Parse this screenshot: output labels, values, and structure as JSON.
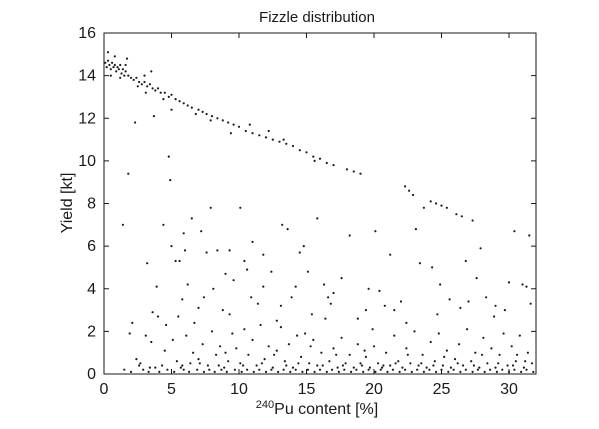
{
  "chart_data": {
    "type": "scatter",
    "title": "Fizzle distribution",
    "xlabel": "Pu content [%]",
    "xlabel_superscript": "240",
    "ylabel": "Yield [kt]",
    "xlim": [
      0,
      32
    ],
    "ylim": [
      0,
      16
    ],
    "xticks": [
      0,
      5,
      10,
      15,
      20,
      25,
      30
    ],
    "yticks": [
      0,
      2,
      4,
      6,
      8,
      10,
      12,
      14,
      16
    ],
    "grid": false,
    "marker_color": "#1a1a1a",
    "points": [
      [
        0.1,
        14.6
      ],
      [
        0.2,
        14.4
      ],
      [
        0.3,
        14.7
      ],
      [
        0.4,
        14.5
      ],
      [
        0.5,
        14.3
      ],
      [
        0.6,
        14.6
      ],
      [
        0.7,
        14.4
      ],
      [
        0.8,
        14.5
      ],
      [
        0.9,
        14.2
      ],
      [
        1.0,
        14.4
      ],
      [
        1.1,
        14.3
      ],
      [
        1.2,
        14.5
      ],
      [
        1.3,
        14.1
      ],
      [
        1.4,
        14.3
      ],
      [
        1.5,
        14.0
      ],
      [
        1.6,
        14.2
      ],
      [
        1.8,
        14.0
      ],
      [
        2.0,
        13.9
      ],
      [
        2.2,
        13.8
      ],
      [
        2.4,
        13.9
      ],
      [
        2.6,
        13.7
      ],
      [
        2.8,
        13.6
      ],
      [
        3.0,
        13.7
      ],
      [
        3.2,
        13.5
      ],
      [
        3.4,
        13.6
      ],
      [
        3.6,
        13.4
      ],
      [
        3.8,
        13.3
      ],
      [
        4.0,
        13.4
      ],
      [
        4.2,
        13.2
      ],
      [
        4.5,
        13.2
      ],
      [
        4.8,
        13.0
      ],
      [
        5.0,
        13.1
      ],
      [
        5.3,
        12.9
      ],
      [
        5.6,
        12.8
      ],
      [
        5.9,
        12.7
      ],
      [
        6.2,
        12.6
      ],
      [
        6.5,
        12.5
      ],
      [
        7.0,
        12.4
      ],
      [
        7.3,
        12.3
      ],
      [
        7.6,
        12.2
      ],
      [
        8.0,
        12.1
      ],
      [
        8.4,
        12.0
      ],
      [
        8.8,
        11.9
      ],
      [
        9.2,
        11.8
      ],
      [
        9.6,
        11.7
      ],
      [
        10.0,
        11.6
      ],
      [
        10.5,
        11.4
      ],
      [
        11.0,
        11.3
      ],
      [
        11.5,
        11.2
      ],
      [
        12.0,
        11.1
      ],
      [
        12.5,
        11.0
      ],
      [
        13.0,
        10.9
      ],
      [
        13.5,
        10.8
      ],
      [
        14.0,
        10.7
      ],
      [
        14.5,
        10.5
      ],
      [
        15.0,
        10.4
      ],
      [
        15.5,
        10.2
      ],
      [
        16.0,
        10.1
      ],
      [
        17.0,
        9.8
      ],
      [
        18.0,
        9.6
      ],
      [
        19.0,
        9.4
      ],
      [
        22.3,
        8.8
      ],
      [
        22.6,
        8.6
      ],
      [
        22.9,
        8.4
      ],
      [
        24.2,
        8.1
      ],
      [
        24.6,
        8.0
      ],
      [
        25.0,
        7.9
      ],
      [
        25.4,
        7.8
      ],
      [
        26.5,
        7.4
      ],
      [
        27.3,
        7.2
      ],
      [
        0.8,
        14.9
      ],
      [
        1.7,
        14.8
      ],
      [
        3.5,
        14.2
      ],
      [
        0.3,
        15.1
      ],
      [
        1.2,
        13.9
      ],
      [
        2.5,
        13.5
      ],
      [
        4.4,
        12.9
      ],
      [
        6.8,
        12.2
      ],
      [
        9.4,
        11.3
      ],
      [
        10.8,
        11.7
      ],
      [
        13.3,
        11.0
      ],
      [
        15.6,
        10.0
      ],
      [
        5.0,
        12.4
      ],
      [
        7.9,
        11.9
      ],
      [
        12.2,
        11.4
      ],
      [
        16.5,
        9.9
      ],
      [
        18.5,
        9.5
      ],
      [
        3.0,
        14.0
      ],
      [
        1.6,
        14.5
      ],
      [
        0.5,
        14.0
      ],
      [
        1.4,
        7.0
      ],
      [
        1.8,
        9.4
      ],
      [
        2.3,
        11.8
      ],
      [
        3.1,
        13.2
      ],
      [
        3.7,
        12.1
      ],
      [
        4.8,
        10.2
      ],
      [
        4.9,
        9.1
      ],
      [
        5.3,
        5.3
      ],
      [
        5.6,
        5.3
      ],
      [
        5.9,
        6.6
      ],
      [
        6.5,
        7.3
      ],
      [
        7.2,
        6.7
      ],
      [
        7.6,
        5.7
      ],
      [
        7.9,
        7.8
      ],
      [
        8.4,
        5.8
      ],
      [
        9.0,
        4.7
      ],
      [
        9.6,
        4.4
      ],
      [
        10.1,
        7.8
      ],
      [
        10.6,
        4.9
      ],
      [
        11.0,
        6.2
      ],
      [
        11.8,
        4.1
      ],
      [
        12.4,
        4.8
      ],
      [
        13.2,
        7.0
      ],
      [
        13.6,
        6.8
      ],
      [
        14.2,
        4.1
      ],
      [
        14.5,
        5.7
      ],
      [
        15.1,
        4.8
      ],
      [
        15.8,
        7.3
      ],
      [
        16.3,
        4.2
      ],
      [
        17.0,
        3.8
      ],
      [
        17.6,
        4.5
      ],
      [
        18.2,
        6.5
      ],
      [
        19.4,
        3.0
      ],
      [
        20.1,
        6.7
      ],
      [
        20.8,
        3.2
      ],
      [
        21.5,
        3.0
      ],
      [
        22.4,
        2.4
      ],
      [
        23.1,
        6.8
      ],
      [
        23.7,
        7.8
      ],
      [
        24.3,
        5.0
      ],
      [
        24.9,
        4.2
      ],
      [
        25.6,
        3.5
      ],
      [
        26.1,
        7.5
      ],
      [
        26.8,
        5.3
      ],
      [
        27.6,
        4.5
      ],
      [
        28.3,
        3.6
      ],
      [
        29.0,
        3.2
      ],
      [
        29.7,
        3.0
      ],
      [
        30.4,
        6.7
      ],
      [
        31.0,
        4.2
      ],
      [
        31.5,
        6.5
      ],
      [
        3.2,
        5.2
      ],
      [
        3.9,
        4.1
      ],
      [
        4.4,
        7.0
      ],
      [
        5.8,
        3.5
      ],
      [
        6.2,
        4.2
      ],
      [
        7.0,
        3.1
      ],
      [
        8.1,
        4.0
      ],
      [
        8.8,
        3.0
      ],
      [
        9.3,
        2.8
      ],
      [
        10.4,
        5.3
      ],
      [
        11.4,
        3.3
      ],
      [
        12.8,
        2.5
      ],
      [
        13.9,
        3.6
      ],
      [
        15.4,
        2.8
      ],
      [
        16.8,
        3.3
      ],
      [
        18.8,
        2.6
      ],
      [
        20.4,
        3.9
      ],
      [
        22.0,
        3.4
      ],
      [
        26.4,
        3.1
      ],
      [
        28.9,
        2.7
      ],
      [
        30.0,
        4.3
      ],
      [
        31.3,
        4.1
      ],
      [
        1.9,
        1.9
      ],
      [
        2.4,
        0.7
      ],
      [
        2.7,
        0.5
      ],
      [
        3.1,
        1.8
      ],
      [
        3.5,
        1.5
      ],
      [
        4.0,
        2.7
      ],
      [
        4.3,
        0.4
      ],
      [
        4.6,
        2.3
      ],
      [
        5.1,
        1.6
      ],
      [
        5.4,
        0.6
      ],
      [
        5.7,
        0.3
      ],
      [
        6.1,
        1.8
      ],
      [
        6.4,
        0.5
      ],
      [
        6.7,
        2.4
      ],
      [
        7.0,
        0.7
      ],
      [
        7.3,
        1.4
      ],
      [
        7.7,
        0.4
      ],
      [
        8.0,
        2.0
      ],
      [
        8.3,
        0.9
      ],
      [
        8.6,
        1.3
      ],
      [
        8.9,
        0.3
      ],
      [
        9.2,
        0.6
      ],
      [
        9.5,
        1.9
      ],
      [
        9.8,
        1.2
      ],
      [
        10.1,
        0.5
      ],
      [
        10.4,
        2.1
      ],
      [
        10.7,
        0.9
      ],
      [
        11.0,
        1.6
      ],
      [
        11.3,
        0.4
      ],
      [
        11.6,
        2.3
      ],
      [
        11.9,
        0.7
      ],
      [
        12.2,
        1.3
      ],
      [
        12.5,
        0.3
      ],
      [
        12.8,
        1.1
      ],
      [
        13.1,
        2.2
      ],
      [
        13.4,
        0.6
      ],
      [
        13.7,
        1.4
      ],
      [
        14.0,
        0.3
      ],
      [
        14.3,
        1.8
      ],
      [
        14.6,
        0.8
      ],
      [
        14.9,
        1.9
      ],
      [
        15.2,
        0.5
      ],
      [
        15.5,
        1.6
      ],
      [
        15.8,
        0.4
      ],
      [
        16.1,
        1.0
      ],
      [
        16.4,
        2.6
      ],
      [
        16.7,
        0.6
      ],
      [
        17.0,
        1.2
      ],
      [
        17.3,
        0.3
      ],
      [
        17.6,
        1.7
      ],
      [
        17.9,
        0.5
      ],
      [
        18.2,
        0.9
      ],
      [
        18.5,
        0.3
      ],
      [
        18.8,
        1.4
      ],
      [
        19.1,
        0.4
      ],
      [
        19.4,
        0.8
      ],
      [
        19.7,
        0.3
      ],
      [
        20.0,
        1.3
      ],
      [
        20.3,
        0.5
      ],
      [
        20.6,
        0.3
      ],
      [
        20.9,
        1.0
      ],
      [
        21.2,
        0.4
      ],
      [
        21.5,
        1.8
      ],
      [
        21.8,
        0.6
      ],
      [
        22.1,
        0.3
      ],
      [
        22.4,
        1.2
      ],
      [
        22.7,
        0.5
      ],
      [
        23.0,
        2.0
      ],
      [
        23.3,
        0.4
      ],
      [
        23.6,
        0.9
      ],
      [
        23.9,
        0.3
      ],
      [
        24.2,
        1.5
      ],
      [
        24.5,
        0.6
      ],
      [
        24.8,
        1.9
      ],
      [
        25.1,
        0.4
      ],
      [
        25.4,
        1.1
      ],
      [
        25.7,
        0.3
      ],
      [
        26.0,
        0.7
      ],
      [
        26.3,
        1.4
      ],
      [
        26.6,
        0.4
      ],
      [
        26.9,
        2.1
      ],
      [
        27.2,
        0.6
      ],
      [
        27.5,
        1.0
      ],
      [
        27.8,
        0.3
      ],
      [
        28.1,
        1.7
      ],
      [
        28.4,
        0.5
      ],
      [
        28.7,
        1.2
      ],
      [
        29.0,
        0.3
      ],
      [
        29.3,
        0.9
      ],
      [
        29.6,
        1.9
      ],
      [
        29.9,
        0.4
      ],
      [
        30.2,
        1.3
      ],
      [
        30.5,
        0.6
      ],
      [
        30.8,
        1.8
      ],
      [
        31.1,
        0.3
      ],
      [
        31.4,
        1.0
      ],
      [
        31.7,
        0.5
      ],
      [
        1.5,
        0.2
      ],
      [
        2.0,
        0.1
      ],
      [
        2.9,
        0.2
      ],
      [
        3.3,
        0.1
      ],
      [
        3.8,
        0.3
      ],
      [
        4.1,
        0.1
      ],
      [
        4.7,
        0.2
      ],
      [
        5.2,
        0.1
      ],
      [
        5.9,
        0.2
      ],
      [
        6.3,
        0.1
      ],
      [
        6.9,
        0.2
      ],
      [
        7.4,
        0.1
      ],
      [
        7.8,
        0.2
      ],
      [
        8.2,
        0.1
      ],
      [
        8.7,
        0.2
      ],
      [
        9.1,
        0.1
      ],
      [
        9.7,
        0.2
      ],
      [
        10.2,
        0.1
      ],
      [
        10.6,
        0.2
      ],
      [
        11.1,
        0.1
      ],
      [
        11.5,
        0.2
      ],
      [
        12.0,
        0.1
      ],
      [
        12.4,
        0.2
      ],
      [
        12.9,
        0.1
      ],
      [
        13.3,
        0.2
      ],
      [
        13.8,
        0.1
      ],
      [
        14.2,
        0.2
      ],
      [
        14.7,
        0.1
      ],
      [
        15.1,
        0.2
      ],
      [
        15.6,
        0.1
      ],
      [
        16.0,
        0.2
      ],
      [
        16.5,
        0.1
      ],
      [
        16.9,
        0.2
      ],
      [
        17.4,
        0.1
      ],
      [
        17.8,
        0.2
      ],
      [
        18.3,
        0.1
      ],
      [
        18.7,
        0.2
      ],
      [
        19.2,
        0.1
      ],
      [
        19.6,
        0.2
      ],
      [
        20.1,
        0.1
      ],
      [
        20.5,
        0.2
      ],
      [
        21.0,
        0.1
      ],
      [
        21.4,
        0.2
      ],
      [
        21.9,
        0.1
      ],
      [
        22.3,
        0.2
      ],
      [
        22.8,
        0.1
      ],
      [
        23.2,
        0.2
      ],
      [
        23.7,
        0.1
      ],
      [
        24.1,
        0.2
      ],
      [
        24.6,
        0.1
      ],
      [
        25.0,
        0.2
      ],
      [
        25.5,
        0.1
      ],
      [
        25.9,
        0.2
      ],
      [
        26.4,
        0.1
      ],
      [
        26.8,
        0.2
      ],
      [
        27.3,
        0.1
      ],
      [
        27.7,
        0.2
      ],
      [
        28.2,
        0.1
      ],
      [
        28.6,
        0.2
      ],
      [
        29.1,
        0.1
      ],
      [
        29.5,
        0.2
      ],
      [
        30.0,
        0.1
      ],
      [
        30.4,
        0.2
      ],
      [
        30.9,
        0.1
      ],
      [
        31.3,
        0.2
      ],
      [
        31.8,
        0.1
      ],
      [
        5.0,
        6.0
      ],
      [
        6.0,
        5.8
      ],
      [
        9.3,
        5.8
      ],
      [
        11.8,
        5.6
      ],
      [
        14.8,
        6.0
      ],
      [
        19.6,
        4.0
      ],
      [
        21.2,
        5.6
      ],
      [
        23.4,
        5.2
      ],
      [
        27.9,
        5.9
      ],
      [
        2.1,
        2.4
      ],
      [
        3.6,
        2.9
      ],
      [
        5.5,
        2.7
      ],
      [
        7.4,
        3.6
      ],
      [
        10.9,
        3.6
      ],
      [
        13.1,
        3.2
      ],
      [
        16.6,
        3.6
      ],
      [
        19.9,
        2.1
      ],
      [
        24.7,
        2.8
      ],
      [
        27.0,
        3.4
      ],
      [
        31.6,
        3.3
      ],
      [
        4.5,
        1.1
      ],
      [
        6.6,
        1.0
      ],
      [
        9.0,
        1.0
      ],
      [
        12.6,
        0.9
      ],
      [
        15.3,
        1.3
      ],
      [
        17.2,
        0.9
      ],
      [
        19.3,
        1.1
      ],
      [
        22.5,
        0.9
      ],
      [
        25.2,
        0.8
      ],
      [
        28.0,
        0.9
      ],
      [
        30.6,
        0.9
      ],
      [
        2.6,
        0.4
      ],
      [
        3.4,
        0.3
      ],
      [
        5.8,
        0.4
      ],
      [
        7.1,
        0.5
      ],
      [
        8.5,
        0.4
      ],
      [
        10.3,
        0.4
      ],
      [
        11.7,
        0.5
      ],
      [
        13.5,
        0.4
      ],
      [
        14.4,
        0.5
      ],
      [
        16.2,
        0.4
      ],
      [
        17.7,
        0.4
      ],
      [
        19.0,
        0.5
      ],
      [
        20.7,
        0.4
      ],
      [
        21.6,
        0.5
      ],
      [
        23.5,
        0.5
      ],
      [
        24.4,
        0.4
      ],
      [
        26.2,
        0.5
      ],
      [
        27.4,
        0.4
      ],
      [
        29.2,
        0.5
      ],
      [
        30.3,
        0.4
      ],
      [
        31.2,
        0.6
      ]
    ]
  }
}
